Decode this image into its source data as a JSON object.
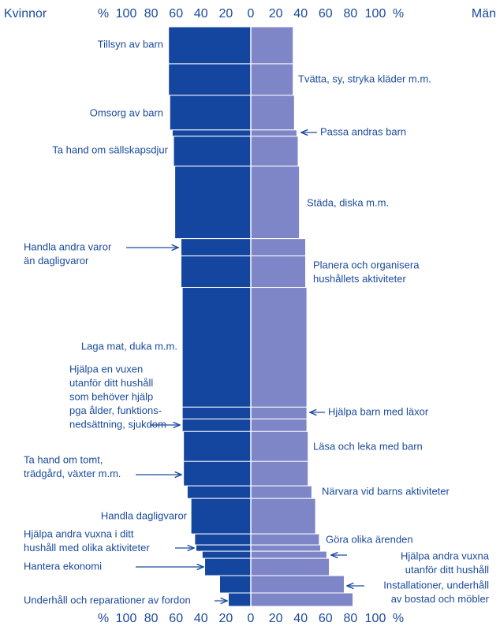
{
  "chart_data": {
    "type": "butterfly-bar",
    "categories": [
      [
        "Tillsyn av barn"
      ],
      [
        "Tvätta, sy, stryka kläder m.m."
      ],
      [
        "Omsorg av barn"
      ],
      [
        "Passa andras barn"
      ],
      [
        "Ta hand om sällskapsdjur"
      ],
      [
        "Städa, diska m.m."
      ],
      [
        "Handla andra varor",
        "än dagligvaror"
      ],
      [
        "Planera och organisera",
        "hushållets aktiviteter"
      ],
      [
        "Laga mat, duka m.m."
      ],
      [
        "Hjälpa barn med läxor"
      ],
      [
        "Hjälpa en vuxen",
        "utanför ditt hushåll",
        "som behöver hjälp",
        "pga ålder, funktions-",
        "nedsättning, sjukdom"
      ],
      [
        "Läsa och leka med barn"
      ],
      [
        "Ta hand om tomt,",
        "trädgård, växter m.m."
      ],
      [
        "Närvara vid barns aktiviteter"
      ],
      [
        "Handla dagligvaror"
      ],
      [
        "Göra olika ärenden"
      ],
      [
        "Hjälpa andra vuxna i ditt",
        "hushåll med olika aktiviteter"
      ],
      [
        "Hjälpa andra vuxna",
        "utanför ditt hushåll"
      ],
      [
        "Hantera ekonomi"
      ],
      [
        "Installationer, underhåll",
        "av bostad och möbler"
      ],
      [
        "Underhåll och reparationer av fordon"
      ]
    ],
    "sizes": [
      47,
      40,
      44,
      8,
      38,
      92,
      22,
      40,
      152,
      15,
      16,
      38,
      31,
      16,
      45,
      14,
      8,
      9,
      22,
      22,
      17
    ],
    "series": [
      {
        "name": "Kvinnor",
        "color": "#1446a0",
        "values": [
          66,
          66,
          65,
          63,
          62,
          61,
          56,
          56,
          55,
          55,
          55,
          54,
          54,
          51,
          48,
          45,
          44,
          39,
          37,
          25,
          18
        ]
      },
      {
        "name": "Män",
        "color": "#7f86c8",
        "values": [
          34,
          34,
          35,
          37,
          38,
          39,
          44,
          44,
          45,
          45,
          45,
          46,
          46,
          49,
          52,
          55,
          56,
          61,
          63,
          75,
          82
        ]
      }
    ],
    "x_unit": "%",
    "xlim": [
      -100,
      100
    ],
    "xticks": [
      {
        "value": -100,
        "label": "100"
      },
      {
        "value": -80,
        "label": "80"
      },
      {
        "value": -60,
        "label": "60"
      },
      {
        "value": -40,
        "label": "40"
      },
      {
        "value": -20,
        "label": "20"
      },
      0,
      20,
      40,
      60,
      80,
      100
    ]
  }
}
